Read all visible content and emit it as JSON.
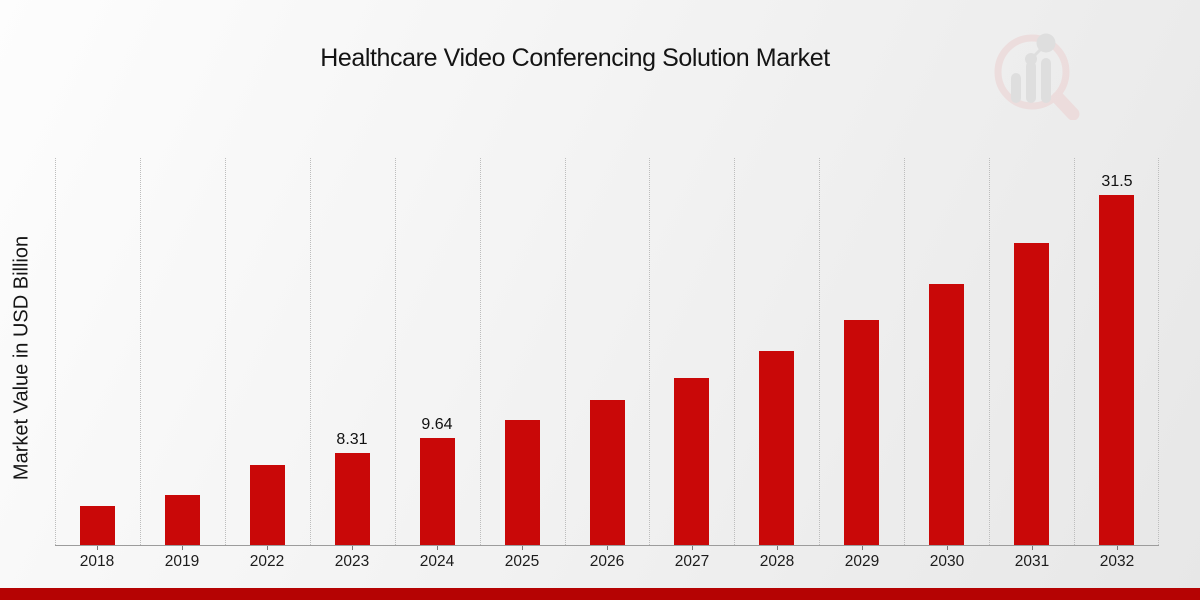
{
  "header": {
    "title": "Healthcare Video Conferencing Solution Market"
  },
  "watermark": {
    "name": "magnifier-bar-chart-logo",
    "ring_color": "#ecd0d0",
    "bars_color": "#d2d2d2"
  },
  "footer": {
    "accent_color": "#b50303"
  },
  "chart_data": {
    "type": "bar",
    "title": "Healthcare Video Conferencing Solution Market",
    "xlabel": "",
    "ylabel": "Market Value in USD Billion",
    "categories": [
      "2018",
      "2019",
      "2022",
      "2023",
      "2024",
      "2025",
      "2026",
      "2027",
      "2028",
      "2029",
      "2030",
      "2031",
      "2032"
    ],
    "values": [
      3.5,
      4.5,
      7.2,
      8.31,
      9.64,
      11.2,
      13.0,
      15.0,
      17.4,
      20.2,
      23.5,
      27.2,
      31.5
    ],
    "data_labels": [
      {
        "category": "2023",
        "text": "8.31"
      },
      {
        "category": "2024",
        "text": "9.64"
      },
      {
        "category": "2032",
        "text": "31.5"
      }
    ],
    "ylim": [
      0,
      34.8
    ],
    "bar_color": "#c90808",
    "grid": "vertical-dotted",
    "legend": "none",
    "y_axis_ticks_shown": false
  }
}
